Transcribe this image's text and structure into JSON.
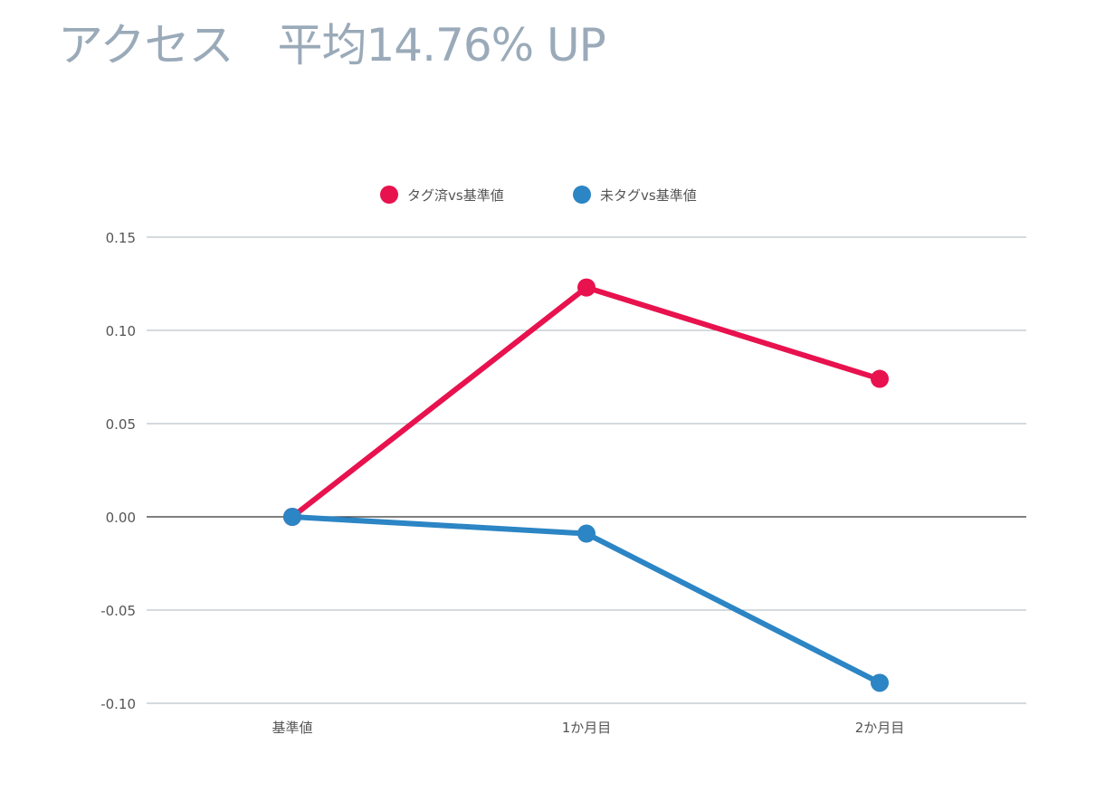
{
  "title": "アクセス　平均14.76% UP",
  "colors": {
    "title": "#9aaab9",
    "grid": "#aab4be",
    "zero_line": "#333333",
    "tick_text": "#555555"
  },
  "chart_data": {
    "type": "line",
    "title": "アクセス　平均14.76% UP",
    "xlabel": "",
    "ylabel": "",
    "categories": [
      "基準値",
      "1か月目",
      "2か月目"
    ],
    "series": [
      {
        "name": "タグ済vs基準値",
        "color": "#e8124e",
        "values": [
          0.0,
          0.123,
          0.074
        ]
      },
      {
        "name": "未タグvs基準値",
        "color": "#2c85c4",
        "values": [
          0.0,
          -0.009,
          -0.089
        ]
      }
    ],
    "ylim": [
      -0.1,
      0.15
    ],
    "yticks": [
      0.15,
      0.1,
      0.05,
      0.0,
      -0.05,
      -0.1
    ],
    "ytick_labels": [
      "0.15",
      "0.10",
      "0.05",
      "0.00",
      "-0.05",
      "-0.10"
    ],
    "grid": true,
    "legend": "top-center"
  }
}
